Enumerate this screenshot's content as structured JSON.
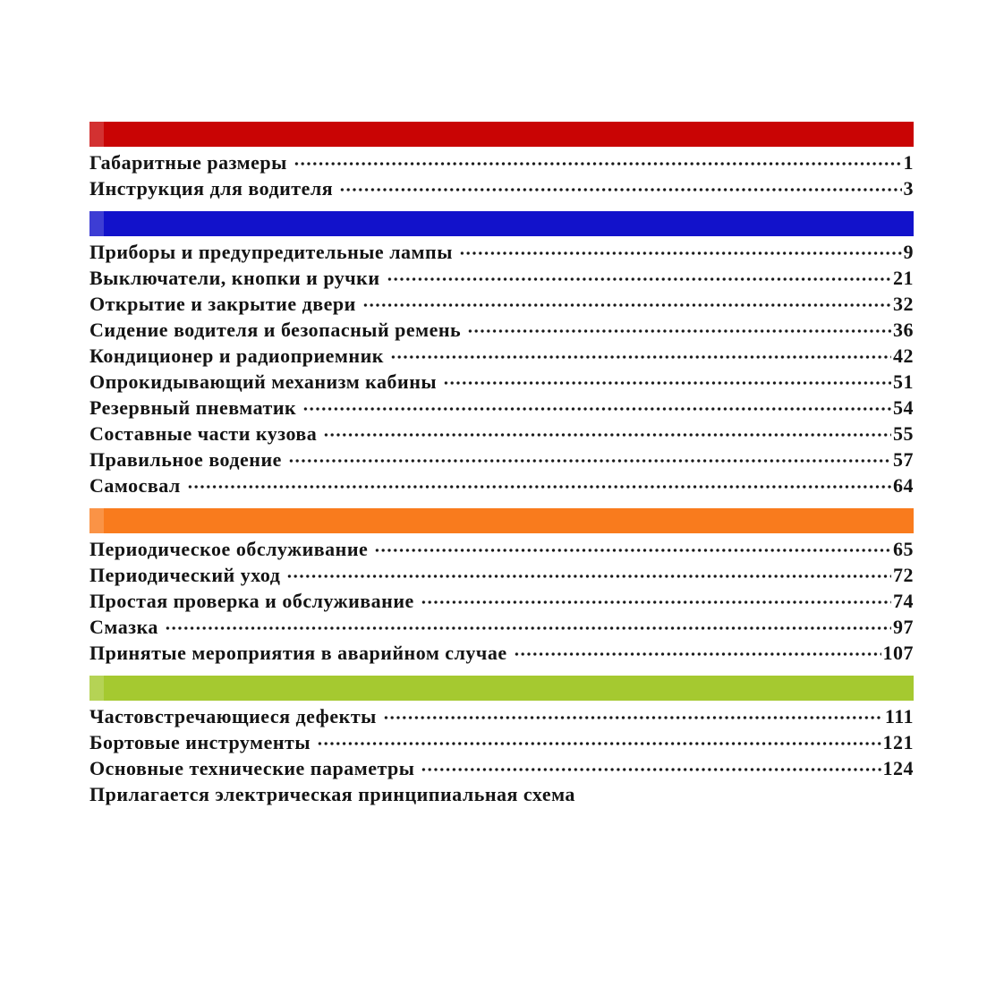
{
  "document": {
    "kind": "table-of-contents",
    "language": "ru",
    "text_color": "#141414",
    "background_color": "#ffffff",
    "sections": [
      {
        "id": "intro",
        "bar_color": "#c90404",
        "items": [
          {
            "label": "Габаритные размеры",
            "page": "1"
          },
          {
            "label": "Инструкция для водителя",
            "page": "3"
          }
        ]
      },
      {
        "id": "cab-and-controls",
        "bar_color": "#1212cb",
        "items": [
          {
            "label": "Приборы и предупредительные лампы",
            "page": "9"
          },
          {
            "label": "Выключатели, кнопки и ручки",
            "page": "21"
          },
          {
            "label": "Открытие и закрытие двери",
            "page": "32"
          },
          {
            "label": "Сидение водителя и безопасный ремень",
            "page": "36"
          },
          {
            "label": "Кондиционер и радиоприемник",
            "page": "42"
          },
          {
            "label": "Опрокидывающий механизм кабины",
            "page": "51"
          },
          {
            "label": "Резервный пневматик",
            "page": "54"
          },
          {
            "label": "Составные части кузова",
            "page": "55"
          },
          {
            "label": "Правильное водение",
            "page": "57"
          },
          {
            "label": "Самосвал",
            "page": "64"
          }
        ]
      },
      {
        "id": "maintenance",
        "bar_color": "#f97b1d",
        "items": [
          {
            "label": "Периодическое обслуживание",
            "page": "65"
          },
          {
            "label": "Периодический уход",
            "page": "72"
          },
          {
            "label": "Простая проверка и обслуживание",
            "page": "74"
          },
          {
            "label": "Смазка",
            "page": "97"
          },
          {
            "label": "Принятые мероприятия в аварийном случае",
            "page": "107"
          }
        ]
      },
      {
        "id": "reference",
        "bar_color": "#a5c930",
        "items": [
          {
            "label": "Частовстречающиеся дефекты",
            "page": "111"
          },
          {
            "label": "Бортовые инструменты",
            "page": "121"
          },
          {
            "label": "Основные технические параметры",
            "page": "124"
          },
          {
            "label": "Прилагается электрическая принципиальная схема",
            "page": ""
          }
        ]
      }
    ]
  }
}
